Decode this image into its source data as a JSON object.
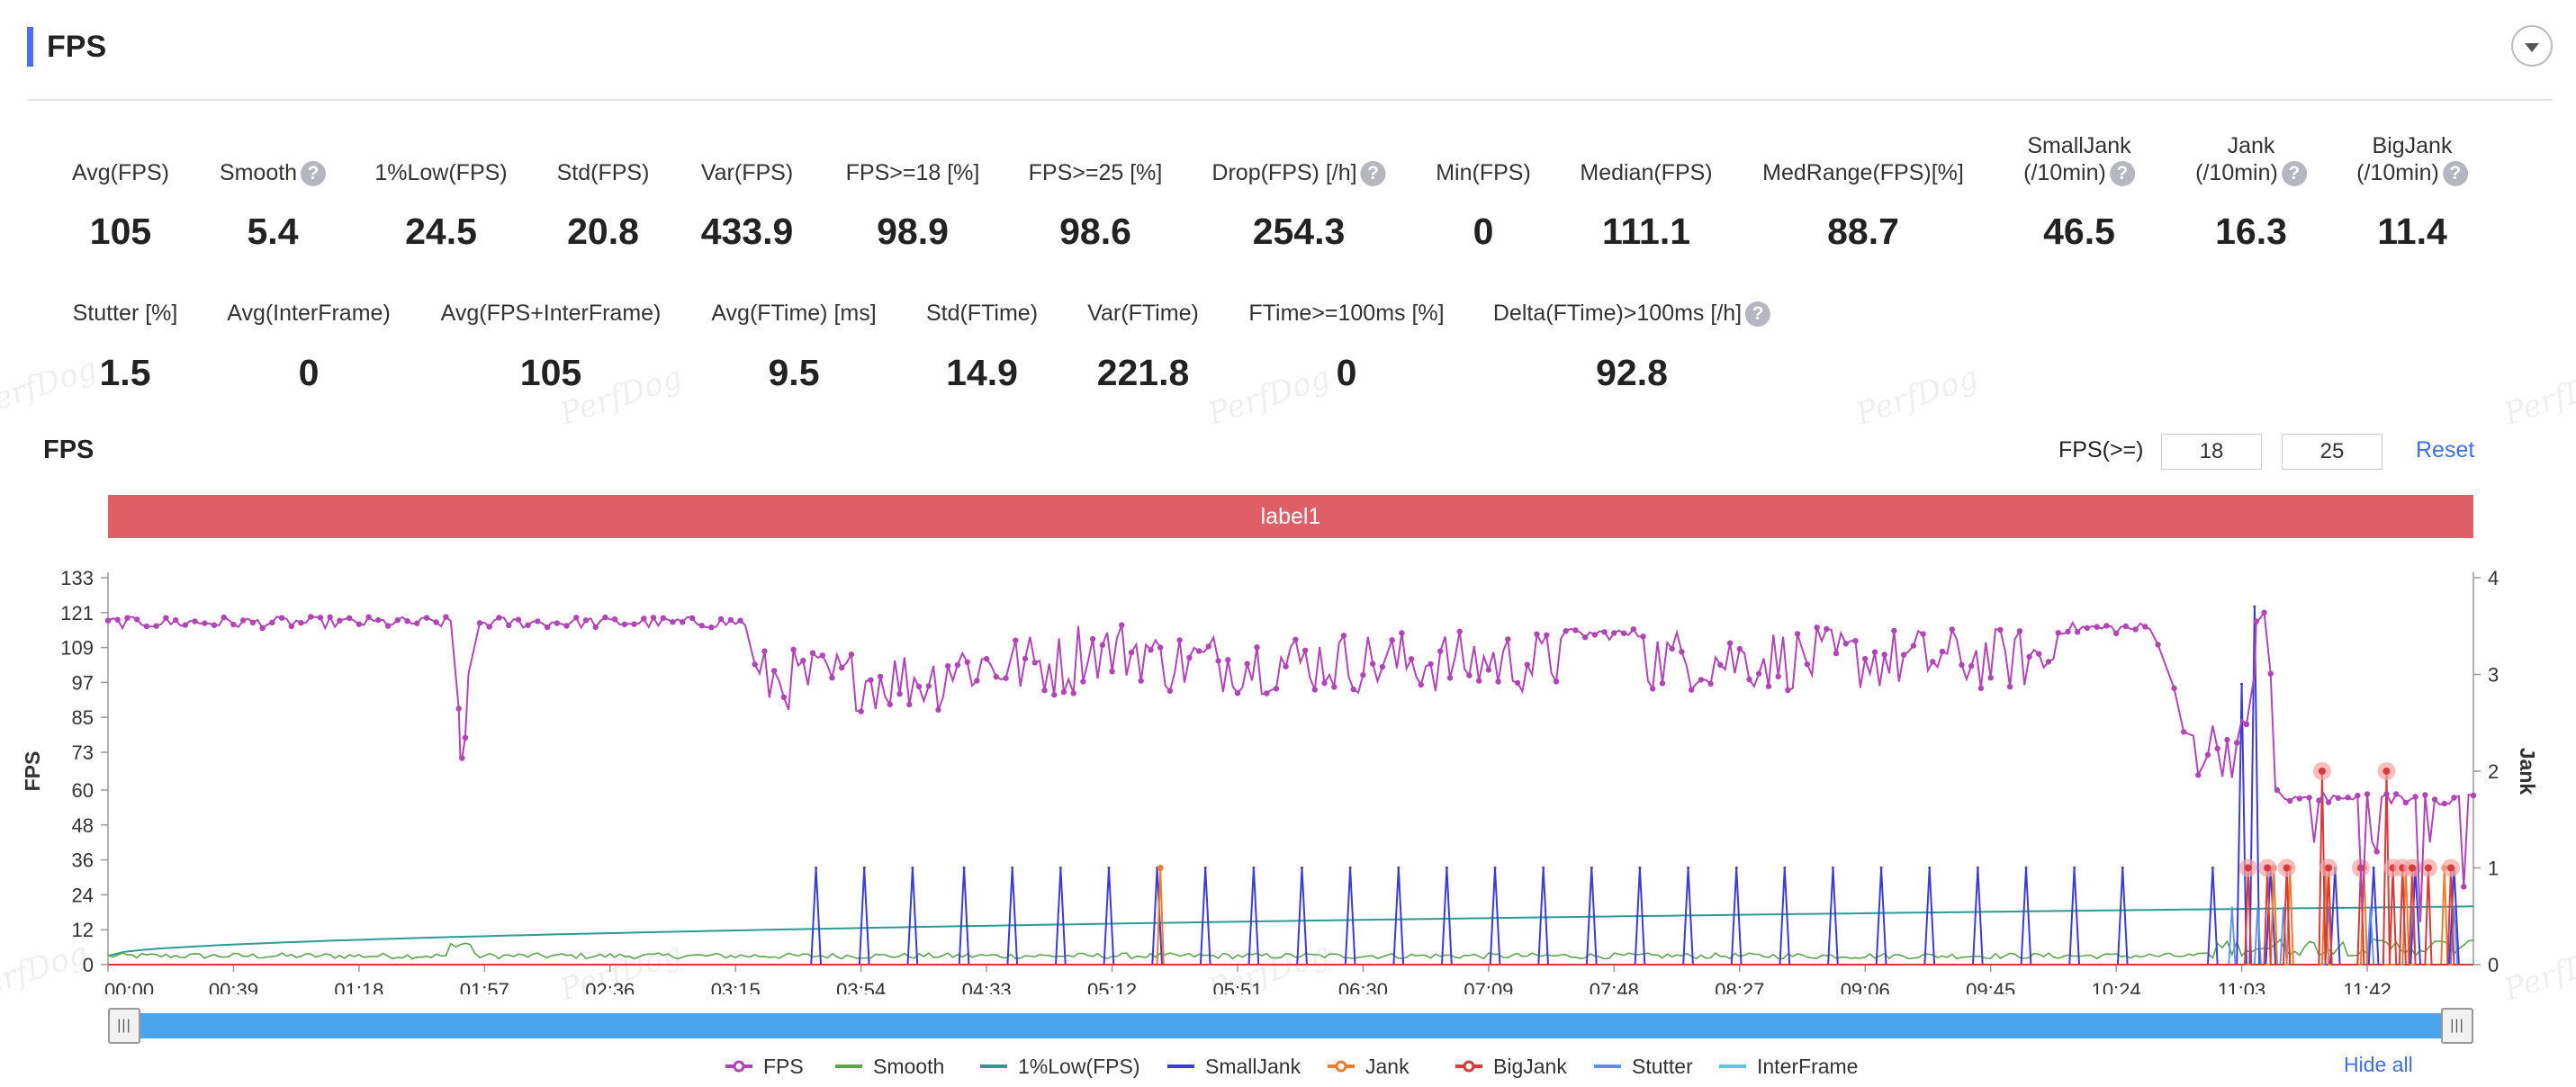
{
  "header": {
    "title": "FPS"
  },
  "stats_row1": [
    {
      "label": "Avg(FPS)",
      "value": "105",
      "help": false
    },
    {
      "label": "Smooth",
      "value": "5.4",
      "help": true
    },
    {
      "label": "1%Low(FPS)",
      "value": "24.5",
      "help": false
    },
    {
      "label": "Std(FPS)",
      "value": "20.8",
      "help": false
    },
    {
      "label": "Var(FPS)",
      "value": "433.9",
      "help": false
    },
    {
      "label": "FPS>=18 [%]",
      "value": "98.9",
      "help": false
    },
    {
      "label": "FPS>=25 [%]",
      "value": "98.6",
      "help": false
    },
    {
      "label": "Drop(FPS) [/h]",
      "value": "254.3",
      "help": true
    },
    {
      "label": "Min(FPS)",
      "value": "0",
      "help": false
    },
    {
      "label": "Median(FPS)",
      "value": "111.1",
      "help": false
    },
    {
      "label": "MedRange(FPS)[%]",
      "value": "88.7",
      "help": false
    },
    {
      "label": "SmallJank",
      "label2": "(/10min)",
      "value": "46.5",
      "help": true
    },
    {
      "label": "Jank",
      "label2": "(/10min)",
      "value": "16.3",
      "help": true
    },
    {
      "label": "BigJank",
      "label2": "(/10min)",
      "value": "11.4",
      "help": true
    }
  ],
  "stats_row2": [
    {
      "label": "Stutter [%]",
      "value": "1.5",
      "help": false
    },
    {
      "label": "Avg(InterFrame)",
      "value": "0",
      "help": false
    },
    {
      "label": "Avg(FPS+InterFrame)",
      "value": "105",
      "help": false
    },
    {
      "label": "Avg(FTime) [ms]",
      "value": "9.5",
      "help": false
    },
    {
      "label": "Std(FTime)",
      "value": "14.9",
      "help": false
    },
    {
      "label": "Var(FTime)",
      "value": "221.8",
      "help": false
    },
    {
      "label": "FTime>=100ms [%]",
      "value": "0",
      "help": false
    },
    {
      "label": "Delta(FTime)>100ms [/h]",
      "value": "92.8",
      "help": true
    }
  ],
  "watermark": "PerfDog",
  "chart_section": {
    "title": "FPS",
    "threshold_label": "FPS(>=)",
    "threshold1": "18",
    "threshold2": "25",
    "reset_label": "Reset",
    "label_band": "label1",
    "hide_all_label": "Hide all"
  },
  "icons": {
    "help": "question-circle-icon",
    "collapse": "chevron-down-icon",
    "scroll_handle": "grip-icon"
  },
  "chart_data": {
    "type": "line",
    "xlabel": "",
    "ylabel": "FPS",
    "y2label": "Jank",
    "ylim": [
      0,
      133
    ],
    "y2lim": [
      0,
      4
    ],
    "yticks": [
      "0",
      "12",
      "24",
      "36",
      "48",
      "60",
      "73",
      "85",
      "97",
      "109",
      "121",
      "133"
    ],
    "y2ticks": [
      "0",
      "1",
      "2",
      "3",
      "4"
    ],
    "xticks": [
      "00:00",
      "00:39",
      "01:18",
      "01:57",
      "02:36",
      "03:15",
      "03:54",
      "04:33",
      "05:12",
      "05:51",
      "06:30",
      "07:09",
      "07:48",
      "08:27",
      "09:06",
      "09:45",
      "10:24",
      "11:03",
      "11:42"
    ],
    "x_range_seconds": [
      0,
      735
    ],
    "grid": false,
    "legend_position": "bottom",
    "series_meta": [
      {
        "name": "FPS",
        "color": "#b145b8",
        "axis": "left"
      },
      {
        "name": "Smooth",
        "color": "#5aa64b",
        "axis": "left"
      },
      {
        "name": "1%Low(FPS)",
        "color": "#2b9b93",
        "axis": "left"
      },
      {
        "name": "SmallJank",
        "color": "#3b3bd8",
        "axis": "right"
      },
      {
        "name": "Jank",
        "color": "#ef7b2d",
        "axis": "right"
      },
      {
        "name": "BigJank",
        "color": "#d93a3a",
        "axis": "right"
      },
      {
        "name": "Stutter",
        "color": "#5b8ff0",
        "axis": "right"
      },
      {
        "name": "InterFrame",
        "color": "#5bc8e0",
        "axis": "right"
      }
    ],
    "fps_segments": [
      {
        "t": [
          0,
          107
        ],
        "mean": 118
      },
      {
        "t": [
          115,
          199
        ],
        "mean": 118
      },
      {
        "t": [
          200,
          260
        ],
        "mean": 98
      },
      {
        "t": [
          260,
          300
        ],
        "mean": 103
      },
      {
        "t": [
          300,
          324
        ],
        "mean": 108
      },
      {
        "t": [
          324,
          450
        ],
        "mean": 104
      },
      {
        "t": [
          450,
          477
        ],
        "mean": 114
      },
      {
        "t": [
          477,
          605
        ],
        "mean": 105
      },
      {
        "t": [
          605,
          635
        ],
        "mean": 116
      },
      {
        "t": [
          648,
          665
        ],
        "mean": 75
      },
      {
        "t": [
          676,
          735
        ],
        "mean": 55
      }
    ],
    "fps_dips": [
      {
        "t": 109,
        "fps": 88
      },
      {
        "t": 110,
        "fps": 71
      },
      {
        "t": 111,
        "fps": 78
      },
      {
        "t": 112,
        "fps": 100
      },
      {
        "t": 637,
        "fps": 110
      },
      {
        "t": 642,
        "fps": 95
      },
      {
        "t": 645,
        "fps": 80
      },
      {
        "t": 667,
        "fps": 100
      },
      {
        "t": 668,
        "fps": 118
      },
      {
        "t": 670,
        "fps": 121
      },
      {
        "t": 672,
        "fps": 100
      },
      {
        "t": 674,
        "fps": 60
      }
    ],
    "fps_min": 0,
    "small_jank_times": [
      220,
      235,
      250,
      266,
      281,
      296,
      311,
      326,
      341,
      356,
      371,
      386,
      401,
      416,
      431,
      446,
      461,
      476,
      491,
      506,
      521,
      536,
      551,
      566,
      581,
      596,
      611,
      626,
      654,
      672,
      692,
      704,
      717,
      729
    ],
    "small_jank_peaks": [
      {
        "t": 667,
        "value": 3.7
      },
      {
        "t": 663,
        "value": 2.9
      }
    ],
    "jank_events": [
      {
        "t": 327,
        "value": 1.0
      },
      {
        "t": 673,
        "value": 1.0
      },
      {
        "t": 678,
        "value": 1.0
      },
      {
        "t": 689,
        "value": 1.0
      },
      {
        "t": 701,
        "value": 1.0
      },
      {
        "t": 714,
        "value": 1.0
      },
      {
        "t": 726,
        "value": 1.0
      }
    ],
    "bigjank_events": [
      {
        "t": 665,
        "value": 1.0
      },
      {
        "t": 671,
        "value": 1.0
      },
      {
        "t": 677,
        "value": 1.0
      },
      {
        "t": 688,
        "value": 2.0
      },
      {
        "t": 690,
        "value": 1.0
      },
      {
        "t": 700,
        "value": 1.0
      },
      {
        "t": 708,
        "value": 2.0
      },
      {
        "t": 710,
        "value": 1.0
      },
      {
        "t": 713,
        "value": 1.0
      },
      {
        "t": 716,
        "value": 1.0
      },
      {
        "t": 721,
        "value": 1.0
      },
      {
        "t": 728,
        "value": 1.0
      }
    ],
    "one_percent_low": {
      "start": 3,
      "end": 20
    },
    "smooth_level": 2
  }
}
